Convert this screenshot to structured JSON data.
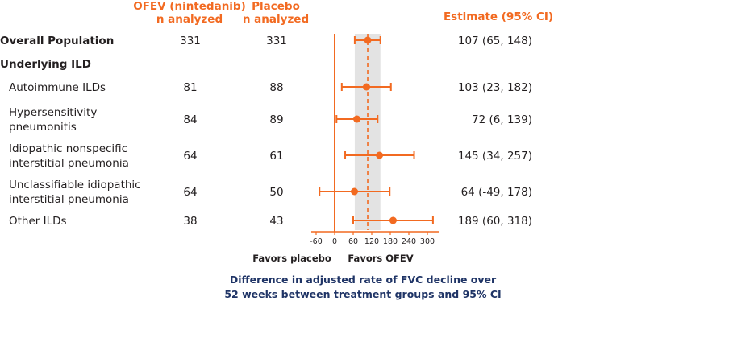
{
  "headers": {
    "ofev_line1": "OFEV (nintedanib)",
    "ofev_line2": "n analyzed",
    "placebo_line1": "Placebo",
    "placebo_line2": "n analyzed",
    "estimate": "Estimate (95% CI)"
  },
  "rows": [
    {
      "label_lines": [
        "Overall Population"
      ],
      "indent": false,
      "ofev_n": "331",
      "placebo_n": "331",
      "estimate_text": "107 (65, 148)"
    },
    {
      "label_lines": [
        "Underlying ILD"
      ],
      "indent": false,
      "ofev_n": "",
      "placebo_n": "",
      "estimate_text": ""
    },
    {
      "label_lines": [
        "Autoimmune ILDs"
      ],
      "indent": true,
      "ofev_n": "81",
      "placebo_n": "88",
      "estimate_text": "103 (23, 182)"
    },
    {
      "label_lines": [
        "Hypersensitivity",
        "pneumonitis"
      ],
      "indent": true,
      "ofev_n": "84",
      "placebo_n": "89",
      "estimate_text": "72 (6, 139)"
    },
    {
      "label_lines": [
        "Idiopathic nonspecific",
        "interstitial pneumonia"
      ],
      "indent": true,
      "ofev_n": "64",
      "placebo_n": "61",
      "estimate_text": "145 (34, 257)"
    },
    {
      "label_lines": [
        "Unclassifiable idiopathic",
        "interstitial pneumonia"
      ],
      "indent": true,
      "ofev_n": "64",
      "placebo_n": "50",
      "estimate_text": "64 (-49, 178)"
    },
    {
      "label_lines": [
        "Other ILDs"
      ],
      "indent": true,
      "ofev_n": "38",
      "placebo_n": "43",
      "estimate_text": "189 (60, 318)"
    }
  ],
  "chart_data": {
    "type": "forest",
    "xticks": [
      "-60",
      "0",
      "60",
      "120",
      "180",
      "240",
      "300"
    ],
    "xlim": [
      -60,
      300
    ],
    "null_line": 0,
    "overall_line": 107,
    "overall_band": [
      65,
      148
    ],
    "points": [
      {
        "category": "Overall Population",
        "estimate": 107,
        "lower": 65,
        "upper": 148
      },
      {
        "category": "Autoimmune ILDs",
        "estimate": 103,
        "lower": 23,
        "upper": 182
      },
      {
        "category": "Hypersensitivity pneumonitis",
        "estimate": 72,
        "lower": 6,
        "upper": 139
      },
      {
        "category": "Idiopathic nonspecific interstitial pneumonia",
        "estimate": 145,
        "lower": 34,
        "upper": 257
      },
      {
        "category": "Unclassifiable idiopathic interstitial pneumonia",
        "estimate": 64,
        "lower": -49,
        "upper": 178
      },
      {
        "category": "Other ILDs",
        "estimate": 189,
        "lower": 60,
        "upper": 318
      }
    ],
    "favors_left": "Favors placebo",
    "favors_right": "Favors OFEV",
    "xlabel_line1": "Difference in adjusted rate of FVC decline over",
    "xlabel_line2": "52 weeks between treatment groups and 95% CI"
  },
  "colors": {
    "accent": "#f26a21",
    "band": "#e3e3e3",
    "title": "#1f3466"
  }
}
